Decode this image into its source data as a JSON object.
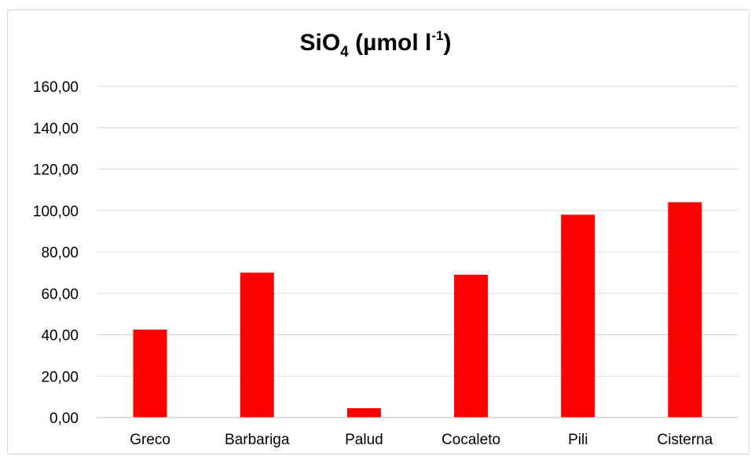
{
  "chart_data": {
    "type": "bar",
    "title": {
      "main": "SiO",
      "subscript": "4",
      "unit_open": " (µmol l",
      "unit_superscript": "-1",
      "unit_close": ")"
    },
    "categories": [
      "Greco",
      "Barbariga",
      "Palud",
      "Cocaleto",
      "Pili",
      "Cisterna"
    ],
    "series": [
      {
        "values": [
          42.5,
          70.0,
          4.5,
          69.0,
          98.0,
          104.0
        ]
      }
    ],
    "ylim": [
      0,
      160
    ],
    "yticks": [
      0,
      20,
      40,
      60,
      80,
      100,
      120,
      140,
      160
    ],
    "ytick_labels": [
      "0,00",
      "20,00",
      "40,00",
      "60,00",
      "80,00",
      "100,00",
      "120,00",
      "140,00",
      "160,00"
    ],
    "xlabel": "",
    "ylabel": "",
    "grid": true,
    "legend": "none",
    "colors": {
      "bar": "#ff0000",
      "grid": "#d9d9d9",
      "axis": "#bfbfbf",
      "frame": "#d9d9d9"
    }
  }
}
